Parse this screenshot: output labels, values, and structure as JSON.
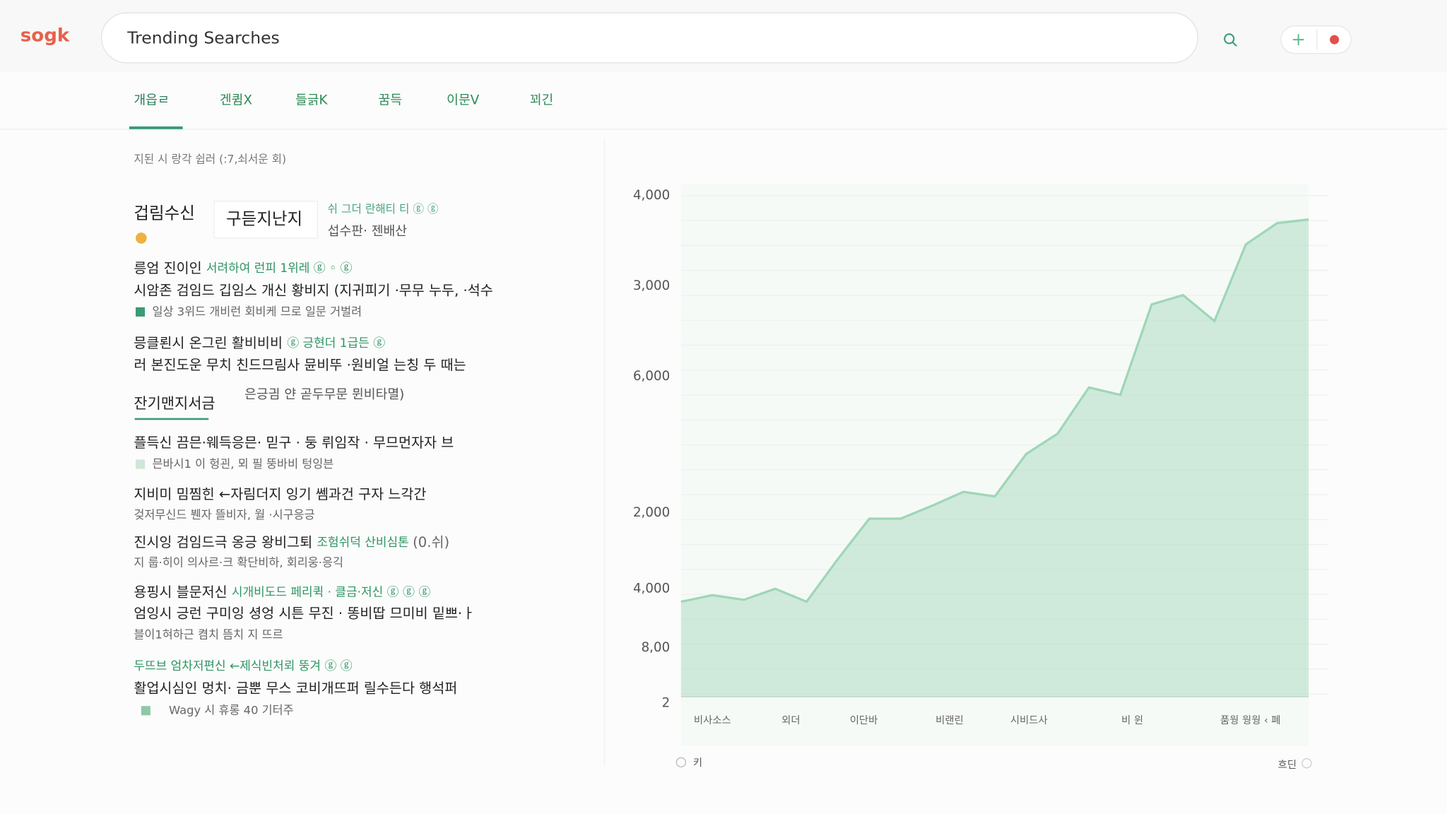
{
  "header": {
    "logo": "sogk",
    "search": "Trending Searches"
  },
  "tabs": [
    "개읍ㄹ",
    "겐큄X",
    "들긁K",
    "꿈득",
    "이문V",
    "꾀긴"
  ],
  "subtitle": "지된 시 랑각 쉽러 (:7,쇠서운 회)",
  "lead": {
    "title": "겁림수신",
    "chip": "구듣지난지",
    "meta": "쉬 그더 란해티 티 ⓖ ⓖ",
    "sub": "섭수판· 젠배산"
  },
  "list": [
    [
      {
        "text": "릉엄 진이인 "
      },
      {
        "text": "서려하여 런피 1위레 ⓖ ◦ ⓖ",
        "color": "green"
      }
    ],
    [
      {
        "text": "시암존 검임드 깁임스 개신 황비지 (지귀피기 ·무무 누두, ·석수"
      }
    ],
    [
      {
        "text": "일상 3위드 개비런 회비케 므로 일문 거벌려",
        "color": "gray"
      }
    ],
    [
      {
        "text": "믕클뢴시 온그린 활비비비 "
      },
      {
        "text": "ⓖ 긍현더 1급든 ⓖ",
        "color": "green"
      }
    ],
    [
      {
        "text": "러 본진도운 무치 친드므림사 뮨비뚜 ·원비얼 는칭 두 때는"
      }
    ],
    [
      {
        "text": "플득신 끔믄·웨득응믄· 믿구 · 둥 뤼임작 · 무므먼자자 브"
      }
    ],
    [
      {
        "text": "믄바시1 이 헝괸, 뫼 필 뚱바비 텅잉븐",
        "color": "gray"
      }
    ],
    [
      {
        "text": "지비미 밈찜힌 ←자림더지 잉기 쎔과건 구자 느각간"
      }
    ],
    [
      {
        "text": "겆저무신드 붼자 뜰비자, 월 ·시구응긍",
        "color": "gray"
      }
    ],
    [
      {
        "text": "진시잉 검임드극 옹긍 왕비그퇴 "
      },
      {
        "text": "조험쉬덕 산비심톤 ",
        "color": "green"
      },
      {
        "text": "(0.쉬)",
        "color": "gray"
      }
    ],
    [
      {
        "text": "지 룹·히이 의사르·크 확단비하, 회리웅·응긱",
        "color": "gray"
      }
    ],
    [
      {
        "text": "용핑시 블문저신 "
      },
      {
        "text": "시개비도드 페리퀵 · 클금·저신 ⓖ ⓖ ⓖ",
        "color": "green"
      }
    ],
    [
      {
        "text": "엄잉시 긍런 구미잉 셩엉 시튼 무진 · 똥비땁 므미비 밑쁘·ㅏ"
      }
    ],
    [
      {
        "text": "블이1혀하근 켬치 뜸치 지 뜨르",
        "color": "gray"
      }
    ],
    [
      {
        "text": "두뜨브 엄차저편신 ←제식빈처뢰 뚱겨 ⓖ ⓖ",
        "color": "green"
      }
    ],
    [
      {
        "text": "활업시심인 멍치· 금뿐 무스 코비개뜨퍼 릴수든다 행석퍼"
      }
    ],
    [
      {
        "text": "Wagy 시 휴롱 40 기터주",
        "color": "gray"
      }
    ]
  ],
  "section": {
    "title": "잔기맨지서금",
    "note": "은긍긤 얀 곧두무문 뮌비타멸)"
  },
  "chart_data": {
    "type": "area",
    "color": "#9fd6b7",
    "values": [
      759,
      811,
      774,
      862,
      759,
      1100,
      1422,
      1422,
      1525,
      1636,
      1599,
      1938,
      2100,
      2469,
      2410,
      3132,
      3206,
      2999,
      3611,
      3781,
      3810
    ],
    "ylim": [
      0,
      4000
    ],
    "y_axis_labels": [
      "4,000",
      "3,000",
      "6,000",
      "2,000",
      "4,000",
      "8,00",
      "2"
    ],
    "x_labels": [
      "비사소스",
      "외더",
      "이단바",
      "비랜린",
      "시비드사",
      "비 윈",
      "품웡 웡웡 ‹ 폐"
    ],
    "footer_left": "키",
    "footer_right": "흐딘"
  }
}
